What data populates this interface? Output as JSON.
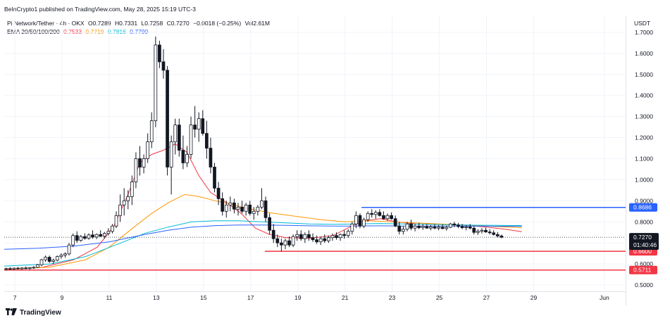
{
  "header": {
    "publisher": "BeInCrypto1 published on TradingView.com, May 28, 2025 15:19 UTC-3",
    "symbol": "Pi Network/Tether · 4h · OKX",
    "o": "O0.7289",
    "h": "H0.7331",
    "l": "L0.7258",
    "c": "C0.7270",
    "change": "−0.0018 (−0.25%)",
    "vol": "Vol2.61M",
    "ema_label": "EMA 20/50/100/200",
    "ema20": "0.7533",
    "ema50": "0.7719",
    "ema100": "0.7816",
    "ema200": "0.7790",
    "currency": "USDT"
  },
  "brand": {
    "name": "TradingView"
  },
  "colors": {
    "up": "#131722",
    "down": "#131722",
    "ema20": "#f23645",
    "ema50": "#ff9800",
    "ema100": "#00bcd4",
    "ema200": "#2962ff",
    "support": "#f23645",
    "resistance": "#2962ff"
  },
  "chart_data": {
    "type": "candlestick",
    "y_ticks": [
      "0.5000",
      "0.6000",
      "0.7000",
      "0.8000",
      "0.9000",
      "1.0000",
      "1.1000",
      "1.2000",
      "1.3000",
      "1.4000",
      "1.5000",
      "1.6000",
      "1.7000"
    ],
    "ylim": [
      0.47,
      1.78
    ],
    "x_ticks": [
      "7",
      "9",
      "11",
      "13",
      "15",
      "17",
      "19",
      "21",
      "23",
      "25",
      "27",
      "29",
      "Jun"
    ],
    "x_tick_days": [
      7,
      9,
      11,
      13,
      15,
      17,
      19,
      21,
      23,
      25,
      27,
      29,
      32
    ],
    "xlim": [
      6.55,
      32.9
    ],
    "price_label": {
      "value": "0.7270",
      "countdown": "01:40:46"
    },
    "levels": [
      {
        "value": 0.8686,
        "label": "0.8686",
        "color": "resistance",
        "from_day": 21.7
      },
      {
        "value": 0.66,
        "label": "0.6600",
        "color": "support",
        "from_day": 17.6
      },
      {
        "value": 0.5711,
        "label": "0.5711",
        "color": "support",
        "from_day": 6.55
      }
    ],
    "candle_start_day": 6.55,
    "candle_step_days": 0.1667,
    "candles": [
      [
        0.575,
        0.582,
        0.568,
        0.578
      ],
      [
        0.578,
        0.585,
        0.572,
        0.576
      ],
      [
        0.576,
        0.583,
        0.57,
        0.58
      ],
      [
        0.58,
        0.586,
        0.574,
        0.577
      ],
      [
        0.577,
        0.584,
        0.571,
        0.581
      ],
      [
        0.581,
        0.588,
        0.575,
        0.578
      ],
      [
        0.578,
        0.585,
        0.572,
        0.582
      ],
      [
        0.582,
        0.59,
        0.576,
        0.584
      ],
      [
        0.584,
        0.6,
        0.58,
        0.596
      ],
      [
        0.596,
        0.625,
        0.59,
        0.62
      ],
      [
        0.62,
        0.64,
        0.61,
        0.632
      ],
      [
        0.632,
        0.64,
        0.605,
        0.612
      ],
      [
        0.612,
        0.625,
        0.6,
        0.618
      ],
      [
        0.618,
        0.64,
        0.612,
        0.635
      ],
      [
        0.635,
        0.65,
        0.625,
        0.642
      ],
      [
        0.642,
        0.655,
        0.63,
        0.648
      ],
      [
        0.648,
        0.7,
        0.64,
        0.69
      ],
      [
        0.69,
        0.745,
        0.68,
        0.735
      ],
      [
        0.735,
        0.755,
        0.7,
        0.712
      ],
      [
        0.712,
        0.738,
        0.705,
        0.73
      ],
      [
        0.73,
        0.745,
        0.715,
        0.722
      ],
      [
        0.722,
        0.745,
        0.715,
        0.738
      ],
      [
        0.738,
        0.76,
        0.72,
        0.728
      ],
      [
        0.728,
        0.745,
        0.718,
        0.74
      ],
      [
        0.74,
        0.76,
        0.728,
        0.732
      ],
      [
        0.732,
        0.752,
        0.72,
        0.745
      ],
      [
        0.745,
        0.77,
        0.735,
        0.755
      ],
      [
        0.755,
        0.79,
        0.745,
        0.78
      ],
      [
        0.78,
        0.85,
        0.77,
        0.83
      ],
      [
        0.83,
        0.93,
        0.8,
        0.88
      ],
      [
        0.88,
        0.96,
        0.83,
        0.9
      ],
      [
        0.9,
        0.95,
        0.86,
        0.92
      ],
      [
        0.92,
        1.02,
        0.88,
        0.99
      ],
      [
        0.99,
        1.13,
        0.96,
        1.1
      ],
      [
        1.1,
        1.16,
        1.02,
        1.06
      ],
      [
        1.06,
        1.12,
        1.03,
        1.1
      ],
      [
        1.1,
        1.22,
        1.08,
        1.18
      ],
      [
        1.18,
        1.32,
        1.15,
        1.28
      ],
      [
        1.28,
        1.68,
        1.25,
        1.64
      ],
      [
        1.64,
        1.66,
        1.53,
        1.56
      ],
      [
        1.56,
        1.62,
        1.48,
        1.52
      ],
      [
        1.52,
        1.54,
        1.02,
        1.06
      ],
      [
        1.06,
        1.21,
        0.93,
        1.18
      ],
      [
        1.18,
        1.29,
        1.12,
        1.26
      ],
      [
        1.26,
        1.29,
        1.11,
        1.14
      ],
      [
        1.14,
        1.21,
        1.05,
        1.08
      ],
      [
        1.08,
        1.16,
        1.06,
        1.12
      ],
      [
        1.12,
        1.3,
        1.1,
        1.26
      ],
      [
        1.26,
        1.35,
        1.2,
        1.24
      ],
      [
        1.24,
        1.32,
        1.18,
        1.29
      ],
      [
        1.29,
        1.33,
        1.21,
        1.22
      ],
      [
        1.22,
        1.28,
        1.1,
        1.15
      ],
      [
        1.15,
        1.2,
        1.03,
        1.06
      ],
      [
        1.06,
        1.08,
        0.94,
        0.96
      ],
      [
        0.96,
        0.99,
        0.88,
        0.91
      ],
      [
        0.91,
        0.94,
        0.83,
        0.85
      ],
      [
        0.85,
        0.9,
        0.82,
        0.88
      ],
      [
        0.88,
        0.92,
        0.85,
        0.89
      ],
      [
        0.89,
        0.91,
        0.84,
        0.86
      ],
      [
        0.86,
        0.89,
        0.83,
        0.87
      ],
      [
        0.87,
        0.9,
        0.84,
        0.85
      ],
      [
        0.85,
        0.89,
        0.83,
        0.88
      ],
      [
        0.88,
        0.9,
        0.83,
        0.84
      ],
      [
        0.84,
        0.87,
        0.81,
        0.85
      ],
      [
        0.85,
        0.88,
        0.83,
        0.87
      ],
      [
        0.87,
        0.96,
        0.86,
        0.9
      ],
      [
        0.9,
        0.92,
        0.8,
        0.82
      ],
      [
        0.82,
        0.84,
        0.74,
        0.76
      ],
      [
        0.76,
        0.79,
        0.7,
        0.72
      ],
      [
        0.72,
        0.74,
        0.68,
        0.7
      ],
      [
        0.7,
        0.72,
        0.66,
        0.69
      ],
      [
        0.69,
        0.72,
        0.67,
        0.71
      ],
      [
        0.71,
        0.73,
        0.68,
        0.69
      ],
      [
        0.69,
        0.74,
        0.68,
        0.73
      ],
      [
        0.73,
        0.76,
        0.71,
        0.74
      ],
      [
        0.74,
        0.76,
        0.71,
        0.72
      ],
      [
        0.72,
        0.75,
        0.7,
        0.74
      ],
      [
        0.74,
        0.76,
        0.71,
        0.725
      ],
      [
        0.725,
        0.745,
        0.705,
        0.715
      ],
      [
        0.715,
        0.735,
        0.695,
        0.705
      ],
      [
        0.705,
        0.73,
        0.69,
        0.72
      ],
      [
        0.72,
        0.74,
        0.7,
        0.71
      ],
      [
        0.71,
        0.735,
        0.7,
        0.725
      ],
      [
        0.725,
        0.745,
        0.71,
        0.735
      ],
      [
        0.735,
        0.75,
        0.715,
        0.725
      ],
      [
        0.725,
        0.745,
        0.71,
        0.74
      ],
      [
        0.74,
        0.76,
        0.72,
        0.735
      ],
      [
        0.735,
        0.765,
        0.725,
        0.755
      ],
      [
        0.755,
        0.8,
        0.74,
        0.79
      ],
      [
        0.79,
        0.85,
        0.77,
        0.83
      ],
      [
        0.83,
        0.84,
        0.77,
        0.78
      ],
      [
        0.78,
        0.82,
        0.77,
        0.81
      ],
      [
        0.81,
        0.85,
        0.8,
        0.84
      ],
      [
        0.84,
        0.86,
        0.82,
        0.835
      ],
      [
        0.835,
        0.855,
        0.815,
        0.845
      ],
      [
        0.845,
        0.86,
        0.825,
        0.83
      ],
      [
        0.83,
        0.85,
        0.81,
        0.815
      ],
      [
        0.815,
        0.84,
        0.805,
        0.83
      ],
      [
        0.83,
        0.845,
        0.81,
        0.815
      ],
      [
        0.815,
        0.83,
        0.775,
        0.78
      ],
      [
        0.78,
        0.8,
        0.74,
        0.755
      ],
      [
        0.755,
        0.78,
        0.74,
        0.765
      ],
      [
        0.765,
        0.8,
        0.755,
        0.79
      ],
      [
        0.79,
        0.81,
        0.76,
        0.77
      ],
      [
        0.77,
        0.79,
        0.755,
        0.78
      ],
      [
        0.78,
        0.795,
        0.765,
        0.772
      ],
      [
        0.772,
        0.788,
        0.762,
        0.778
      ],
      [
        0.778,
        0.79,
        0.768,
        0.77
      ],
      [
        0.77,
        0.785,
        0.76,
        0.776
      ],
      [
        0.776,
        0.79,
        0.765,
        0.77
      ],
      [
        0.77,
        0.785,
        0.76,
        0.775
      ],
      [
        0.775,
        0.788,
        0.765,
        0.768
      ],
      [
        0.768,
        0.782,
        0.758,
        0.774
      ],
      [
        0.774,
        0.795,
        0.77,
        0.79
      ],
      [
        0.79,
        0.8,
        0.775,
        0.785
      ],
      [
        0.785,
        0.795,
        0.77,
        0.778
      ],
      [
        0.778,
        0.79,
        0.765,
        0.772
      ],
      [
        0.772,
        0.785,
        0.76,
        0.776
      ],
      [
        0.776,
        0.79,
        0.765,
        0.77
      ],
      [
        0.77,
        0.78,
        0.74,
        0.75
      ],
      [
        0.75,
        0.765,
        0.738,
        0.755
      ],
      [
        0.755,
        0.77,
        0.745,
        0.76
      ],
      [
        0.76,
        0.772,
        0.748,
        0.752
      ],
      [
        0.752,
        0.765,
        0.74,
        0.748
      ],
      [
        0.748,
        0.76,
        0.735,
        0.74
      ],
      [
        0.74,
        0.752,
        0.726,
        0.733
      ],
      [
        0.733,
        0.74,
        0.722,
        0.727
      ]
    ],
    "ema_series": [
      {
        "key": "ema20",
        "color": "ema20",
        "points": [
          [
            6.55,
            0.575
          ],
          [
            8.2,
            0.585
          ],
          [
            9.5,
            0.62
          ],
          [
            10.5,
            0.68
          ],
          [
            11.2,
            0.78
          ],
          [
            11.8,
            0.93
          ],
          [
            12.3,
            1.08
          ],
          [
            12.8,
            1.12
          ],
          [
            13.3,
            1.14
          ],
          [
            13.8,
            1.17
          ],
          [
            14.3,
            1.13
          ],
          [
            14.8,
            1.02
          ],
          [
            15.3,
            0.94
          ],
          [
            16.0,
            0.89
          ],
          [
            16.6,
            0.84
          ],
          [
            17.2,
            0.77
          ],
          [
            17.8,
            0.74
          ],
          [
            18.5,
            0.725
          ],
          [
            19.5,
            0.722
          ],
          [
            20.5,
            0.735
          ],
          [
            21.2,
            0.775
          ],
          [
            21.8,
            0.805
          ],
          [
            22.5,
            0.815
          ],
          [
            23.2,
            0.8
          ],
          [
            24.0,
            0.79
          ],
          [
            25.0,
            0.788
          ],
          [
            26.0,
            0.785
          ],
          [
            27.0,
            0.775
          ],
          [
            27.8,
            0.765
          ],
          [
            28.5,
            0.753
          ]
        ]
      },
      {
        "key": "ema50",
        "color": "ema50",
        "points": [
          [
            6.55,
            0.575
          ],
          [
            8.5,
            0.585
          ],
          [
            10.0,
            0.62
          ],
          [
            11.0,
            0.68
          ],
          [
            12.0,
            0.77
          ],
          [
            12.8,
            0.84
          ],
          [
            13.5,
            0.89
          ],
          [
            14.2,
            0.93
          ],
          [
            14.8,
            0.92
          ],
          [
            15.5,
            0.9
          ],
          [
            16.3,
            0.88
          ],
          [
            17.0,
            0.86
          ],
          [
            18.0,
            0.84
          ],
          [
            19.0,
            0.825
          ],
          [
            20.0,
            0.81
          ],
          [
            21.0,
            0.8
          ],
          [
            22.0,
            0.805
          ],
          [
            23.0,
            0.8
          ],
          [
            24.0,
            0.795
          ],
          [
            25.0,
            0.79
          ],
          [
            26.0,
            0.785
          ],
          [
            27.0,
            0.78
          ],
          [
            28.5,
            0.772
          ]
        ]
      },
      {
        "key": "ema100",
        "color": "ema100",
        "points": [
          [
            6.55,
            0.59
          ],
          [
            8.5,
            0.6
          ],
          [
            10.0,
            0.635
          ],
          [
            11.5,
            0.7
          ],
          [
            12.5,
            0.745
          ],
          [
            13.5,
            0.775
          ],
          [
            14.5,
            0.8
          ],
          [
            15.5,
            0.805
          ],
          [
            16.5,
            0.805
          ],
          [
            17.5,
            0.8
          ],
          [
            18.5,
            0.795
          ],
          [
            19.5,
            0.79
          ],
          [
            20.5,
            0.788
          ],
          [
            21.5,
            0.79
          ],
          [
            22.5,
            0.792
          ],
          [
            23.5,
            0.79
          ],
          [
            24.5,
            0.788
          ],
          [
            25.5,
            0.786
          ],
          [
            26.5,
            0.784
          ],
          [
            27.5,
            0.783
          ],
          [
            28.5,
            0.782
          ]
        ]
      },
      {
        "key": "ema200",
        "color": "ema200",
        "points": [
          [
            6.55,
            0.67
          ],
          [
            8.0,
            0.675
          ],
          [
            9.5,
            0.685
          ],
          [
            11.0,
            0.705
          ],
          [
            12.5,
            0.74
          ],
          [
            13.5,
            0.76
          ],
          [
            14.5,
            0.775
          ],
          [
            15.5,
            0.782
          ],
          [
            16.5,
            0.785
          ],
          [
            17.5,
            0.785
          ],
          [
            18.5,
            0.783
          ],
          [
            19.5,
            0.781
          ],
          [
            20.5,
            0.78
          ],
          [
            21.5,
            0.78
          ],
          [
            22.5,
            0.781
          ],
          [
            23.5,
            0.78
          ],
          [
            24.5,
            0.78
          ],
          [
            25.5,
            0.78
          ],
          [
            26.5,
            0.78
          ],
          [
            27.5,
            0.779
          ],
          [
            28.5,
            0.779
          ]
        ]
      }
    ]
  }
}
